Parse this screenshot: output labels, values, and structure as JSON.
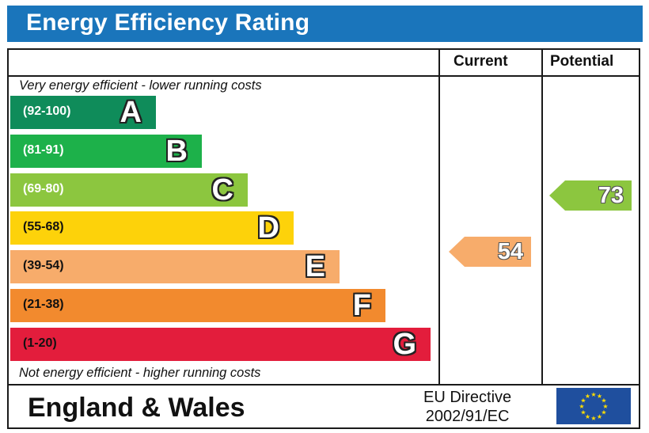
{
  "header": {
    "title": "Energy Efficiency Rating"
  },
  "columns": {
    "current": "Current",
    "potential": "Potential"
  },
  "notes": {
    "top": "Very energy efficient - lower running costs",
    "bottom": "Not energy efficient - higher running costs"
  },
  "bands": [
    {
      "range": "(92-100)",
      "letter": "A",
      "color": "#0f8c5a"
    },
    {
      "range": "(81-91)",
      "letter": "B",
      "color": "#1db14a"
    },
    {
      "range": "(69-80)",
      "letter": "C",
      "color": "#8cc63f"
    },
    {
      "range": "(55-68)",
      "letter": "D",
      "color": "#fdd20a"
    },
    {
      "range": "(39-54)",
      "letter": "E",
      "color": "#f7ac6b"
    },
    {
      "range": "(21-38)",
      "letter": "F",
      "color": "#f28a2e"
    },
    {
      "range": "(1-20)",
      "letter": "G",
      "color": "#e31d3c"
    }
  ],
  "ratings": {
    "current": {
      "value": "54",
      "color": "#f7ac6b"
    },
    "potential": {
      "value": "73",
      "color": "#8cc63f"
    }
  },
  "footer": {
    "region": "England & Wales",
    "directive_line1": "EU Directive",
    "directive_line2": "2002/91/EC"
  },
  "icons": {
    "flag": "eu-flag-icon"
  }
}
